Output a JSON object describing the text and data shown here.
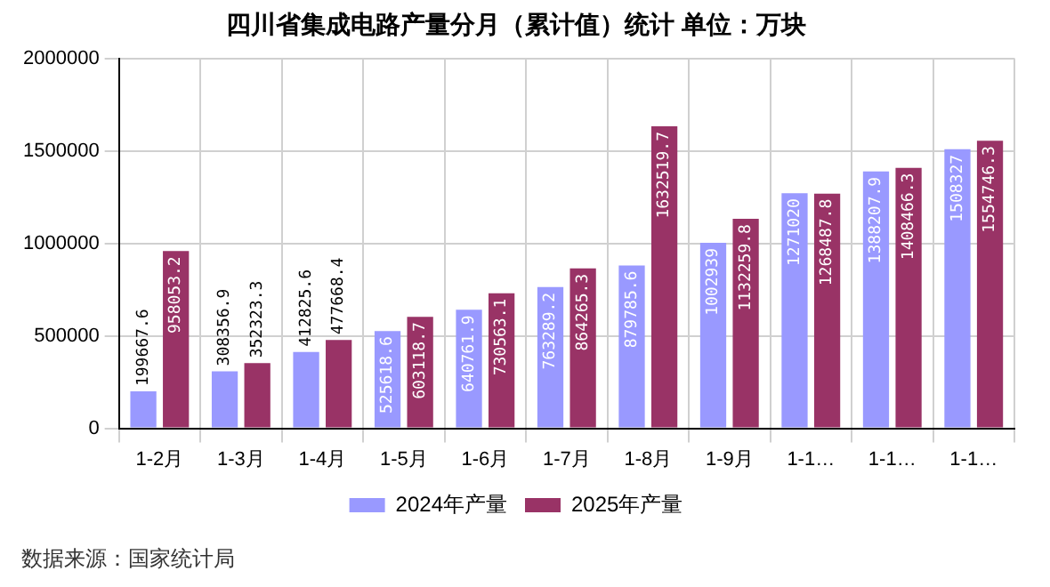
{
  "chart_data": {
    "type": "bar",
    "title": "四川省集成电路产量分月（累计值）统计 单位：万块",
    "categories": [
      "1-2月",
      "1-3月",
      "1-4月",
      "1-5月",
      "1-6月",
      "1-7月",
      "1-8月",
      "1-9月",
      "1-1…",
      "1-1…",
      "1-1…"
    ],
    "series": [
      {
        "name": "2024年产量",
        "color": "#9999ff",
        "values": [
          199667.6,
          308356.9,
          412825.6,
          525618.6,
          640761.9,
          763289.2,
          879785.6,
          1002939,
          1271020,
          1388207.9,
          1508327
        ]
      },
      {
        "name": "2025年产量",
        "color": "#993366",
        "values": [
          958053.2,
          352323.3,
          477668.4,
          603118.7,
          730563.1,
          864265.3,
          1632519.7,
          1132259.8,
          1268487.8,
          1408466.3,
          1554746.3
        ]
      }
    ],
    "ylim": [
      0,
      2000000
    ],
    "yticks": [
      0,
      500000,
      1000000,
      1500000,
      2000000
    ],
    "grid": true,
    "legend": "bottom",
    "data_labels": true,
    "annotations": [
      "数据来源：国家统计局"
    ]
  }
}
